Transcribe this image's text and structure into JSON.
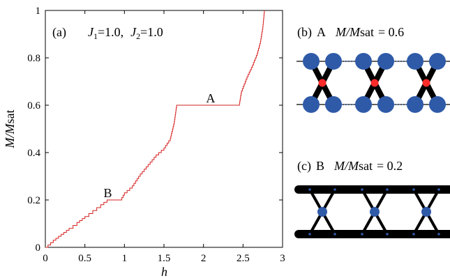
{
  "chart_data": [
    {
      "type": "line",
      "panel_label": "(a)",
      "params_text": {
        "j1_sym": "J",
        "j1_sub": "1",
        "j1_val": "=1.0,",
        "j2_sym": "J",
        "j2_sub": "2",
        "j2_val": "=1.0"
      },
      "xlabel": "h",
      "ylabel": {
        "italic": "M/M",
        "rest": "sat"
      },
      "xlim": [
        0,
        3
      ],
      "ylim": [
        0,
        1
      ],
      "xticks": [
        "0",
        "0.5",
        "1",
        "1.5",
        "2",
        "2.5",
        "3"
      ],
      "yticks": [
        "0",
        "0.2",
        "0.4",
        "0.6",
        "0.8",
        "1"
      ],
      "line_color": "#d62020",
      "series": [
        {
          "x": [
            0,
            0.1,
            0.2,
            0.3,
            0.4,
            0.5,
            0.6,
            0.7,
            0.78,
            0.95,
            1.0,
            1.1,
            1.2,
            1.3,
            1.4,
            1.5,
            1.58,
            1.63,
            1.66,
            2.45,
            2.48,
            2.55,
            2.62,
            2.68,
            2.72,
            2.75,
            2.77
          ],
          "y": [
            0,
            0.03,
            0.055,
            0.08,
            0.105,
            0.13,
            0.155,
            0.18,
            0.2,
            0.2,
            0.23,
            0.26,
            0.31,
            0.35,
            0.39,
            0.42,
            0.46,
            0.53,
            0.6,
            0.6,
            0.66,
            0.72,
            0.77,
            0.82,
            0.87,
            0.93,
            1.0
          ]
        }
      ],
      "annotations": [
        {
          "text": "A",
          "x": 2.05,
          "y": 0.6
        },
        {
          "text": "B",
          "x": 0.86,
          "y": 0.2
        }
      ]
    }
  ],
  "panels": {
    "b": {
      "label": "(b)",
      "name": "A",
      "mag_italic": "M/M",
      "mag_rest": "sat",
      "value_text": "= 0.6"
    },
    "c": {
      "label": "(c)",
      "name": "B",
      "mag_italic": "M/M",
      "mag_rest": "sat",
      "value_text": "= 0.2"
    }
  },
  "colors": {
    "blue": "#2f5aa8",
    "red": "#ff2a2a",
    "black": "#000000"
  }
}
